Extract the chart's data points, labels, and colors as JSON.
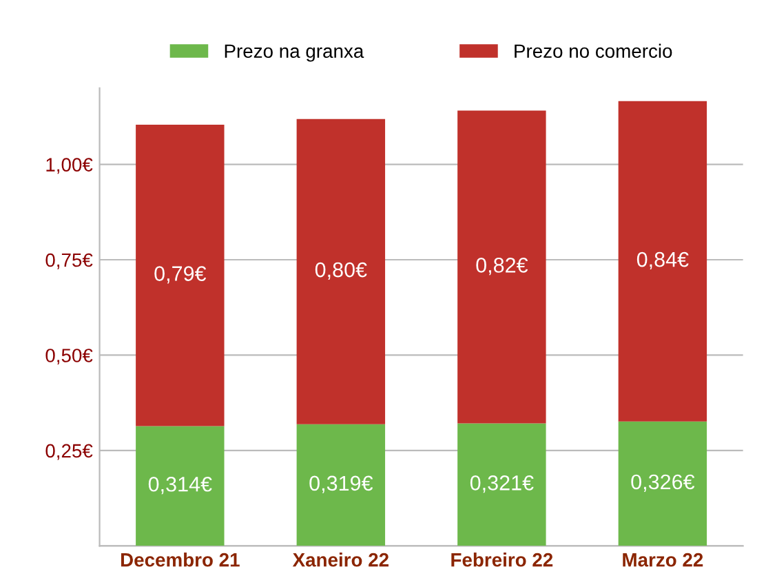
{
  "chart_data": {
    "type": "bar",
    "stacked": true,
    "categories": [
      "Decembro 21",
      "Xaneiro 22",
      "Febreiro 22",
      "Marzo 22"
    ],
    "series": [
      {
        "name": "Prezo na granxa",
        "color": "#6db84b",
        "values": [
          0.314,
          0.319,
          0.321,
          0.326
        ],
        "value_labels": [
          "0,314€",
          "0,319€",
          "0,321€",
          "0,326€"
        ]
      },
      {
        "name": "Prezo no comercio",
        "color": "#c0312b",
        "values": [
          0.79,
          0.8,
          0.82,
          0.84
        ],
        "value_labels": [
          "0,79€",
          "0,80€",
          "0,82€",
          "0,84€"
        ]
      }
    ],
    "ylim": [
      0,
      1.2
    ],
    "yticks": [
      {
        "value": 0,
        "label": null
      },
      {
        "value": 0.25,
        "label": "0,25€"
      },
      {
        "value": 0.5,
        "label": "0,50€"
      },
      {
        "value": 0.75,
        "label": "0,75€"
      },
      {
        "value": 1.0,
        "label": "1,00€"
      }
    ],
    "grid": "y",
    "legend": "top"
  }
}
